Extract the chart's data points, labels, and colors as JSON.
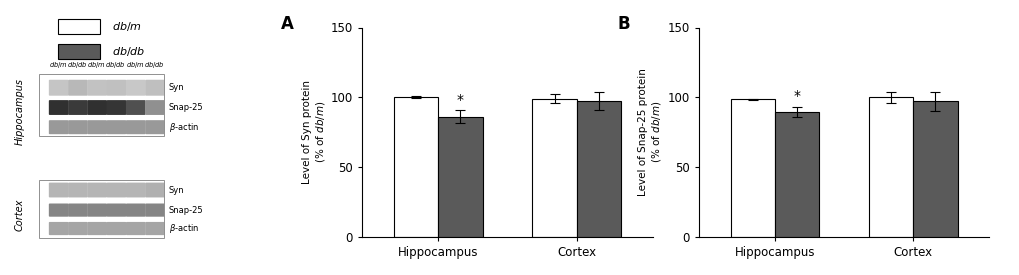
{
  "panel_A": {
    "title": "A",
    "ylabel_line1": "Level of Syn protein",
    "ylabel_line2": "(% of $db/m$)",
    "groups": [
      "Hippocampus",
      "Cortex"
    ],
    "dbm_values": [
      100.0,
      99.0
    ],
    "dbdb_values": [
      86.0,
      97.5
    ],
    "dbm_errors": [
      0.5,
      3.5
    ],
    "dbdb_errors": [
      4.5,
      6.5
    ],
    "sig_markers": [
      "*",
      null
    ]
  },
  "panel_B": {
    "title": "B",
    "ylabel_line1": "Level of Snap-25 protein",
    "ylabel_line2": "(% of $db/m$)",
    "groups": [
      "Hippocampus",
      "Cortex"
    ],
    "dbm_values": [
      98.5,
      100.0
    ],
    "dbdb_values": [
      89.5,
      97.0
    ],
    "dbm_errors": [
      0.5,
      4.0
    ],
    "dbdb_errors": [
      3.5,
      7.0
    ],
    "sig_markers": [
      "*",
      null
    ]
  },
  "legend": {
    "dbm_label": "$db/m$",
    "dbdb_label": "$db/db$"
  },
  "colors": {
    "dbm_bar": "#ffffff",
    "dbdb_bar": "#5a5a5a",
    "bar_edge": "#000000",
    "background": "#ffffff"
  },
  "ylim": [
    0,
    150
  ],
  "yticks": [
    0,
    50,
    100,
    150
  ],
  "bar_width": 0.32,
  "figsize": [
    10.2,
    2.75
  ],
  "dpi": 100,
  "blot": {
    "hippo_col_labels": [
      "$db/m$",
      "$db/db$",
      "$db/m$",
      "$db/db$",
      "$db/m$",
      "$db/db$"
    ],
    "hippo_syn_colors": [
      "#c5c5c5",
      "#b8b8b8",
      "#c2c2c2",
      "#c0c0c0",
      "#c8c8c8",
      "#bfbfbf"
    ],
    "hippo_snap_colors": [
      "#303030",
      "#3a3a3a",
      "#303030",
      "#353535",
      "#505050",
      "#909090"
    ],
    "hippo_actin_colors": [
      "#999999",
      "#999999",
      "#999999",
      "#999999",
      "#999999",
      "#999999"
    ],
    "cortex_syn_colors": [
      "#b5b5b5",
      "#b5b5b5",
      "#b5b5b5",
      "#b5b5b5",
      "#b5b5b5",
      "#b0b0b0"
    ],
    "cortex_snap_colors": [
      "#858585",
      "#858585",
      "#858585",
      "#858585",
      "#858585",
      "#858585"
    ],
    "cortex_actin_colors": [
      "#a5a5a5",
      "#a5a5a5",
      "#a5a5a5",
      "#a5a5a5",
      "#a5a5a5",
      "#a5a5a5"
    ]
  }
}
